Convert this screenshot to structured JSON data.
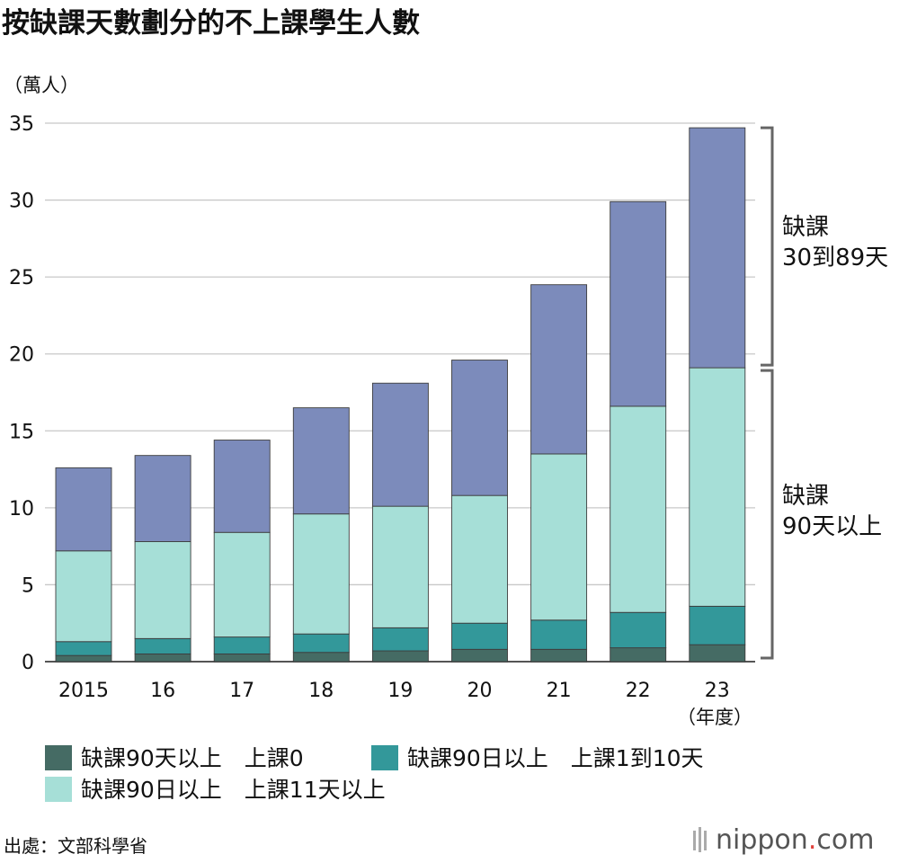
{
  "chart_data": {
    "type": "bar",
    "stacked": true,
    "title": "按缺課天數劃分的不上課學生人數",
    "unit_label": "（萬人）",
    "x_unit_label": "（年度）",
    "categories": [
      "2015",
      "16",
      "17",
      "18",
      "19",
      "20",
      "21",
      "22",
      "23"
    ],
    "ylim": [
      0,
      35
    ],
    "yticks": [
      0,
      5,
      10,
      15,
      20,
      25,
      30,
      35
    ],
    "grid": true,
    "series": [
      {
        "name": "缺課90天以上　上課0",
        "color": "#456b64",
        "values": [
          0.4,
          0.5,
          0.5,
          0.6,
          0.7,
          0.8,
          0.8,
          0.9,
          1.1
        ]
      },
      {
        "name": "缺課90日以上　上課1到10天",
        "color": "#33989a",
        "values": [
          0.9,
          1.0,
          1.1,
          1.2,
          1.5,
          1.7,
          1.9,
          2.3,
          2.5
        ]
      },
      {
        "name": "缺課90日以上　上課11天以上",
        "color": "#a6dfd7",
        "values": [
          5.9,
          6.3,
          6.8,
          7.8,
          7.9,
          8.3,
          10.8,
          13.4,
          15.5
        ]
      },
      {
        "name": "",
        "color": "#7c8bbb",
        "values": [
          5.4,
          5.6,
          6.0,
          6.9,
          8.0,
          8.8,
          11.0,
          13.3,
          15.6
        ]
      }
    ],
    "brackets": [
      {
        "lines": [
          "缺課",
          "30到89天"
        ]
      },
      {
        "lines": [
          "缺課",
          "90天以上"
        ]
      }
    ],
    "legend_position": "bottom",
    "source": "出處：文部科學省",
    "brand": {
      "name": "nippon",
      "dot": ".",
      "tld": "com",
      "dot_color": "#e0403a"
    }
  }
}
